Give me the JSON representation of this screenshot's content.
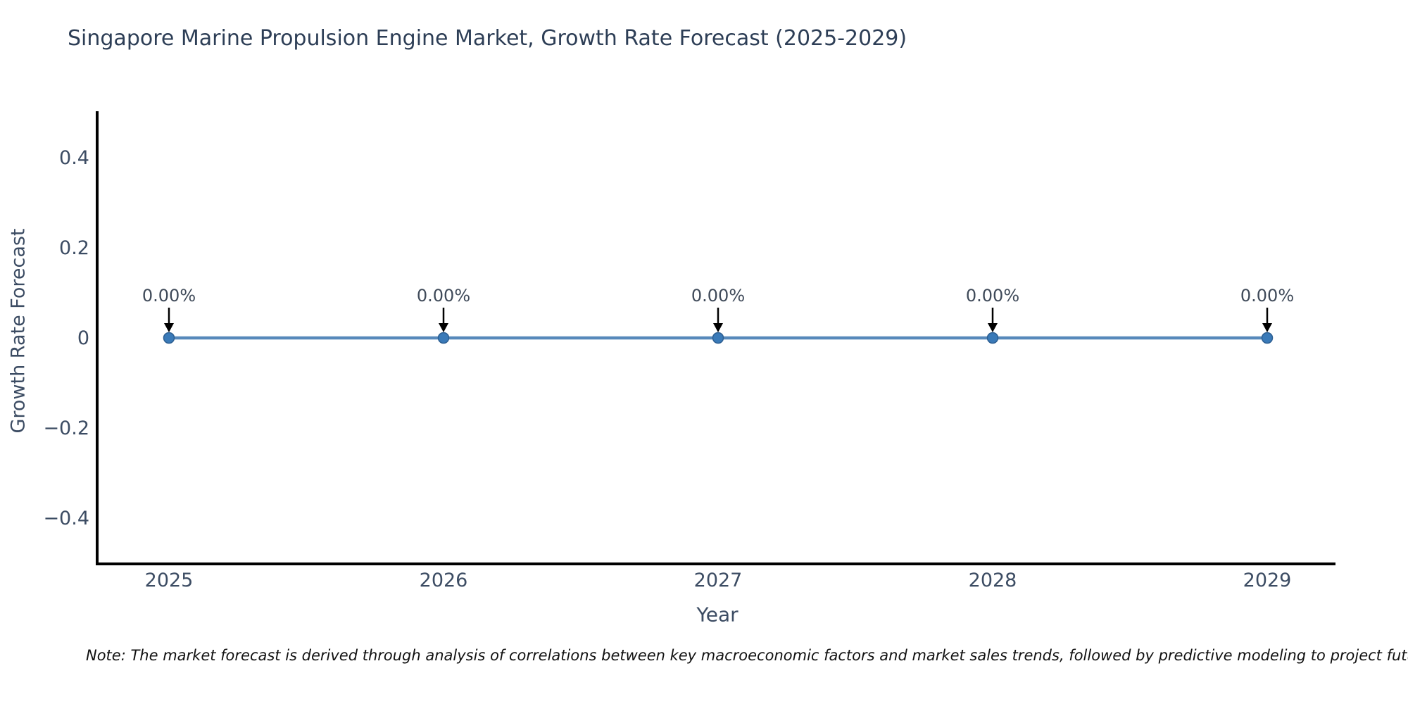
{
  "chart_data": {
    "type": "line",
    "title": "Singapore Marine Propulsion Engine Market, Growth Rate Forecast (2025-2029)",
    "xlabel": "Year",
    "ylabel": "Growth Rate Forecast",
    "categories": [
      "2025",
      "2026",
      "2027",
      "2028",
      "2029"
    ],
    "series": [
      {
        "name": "Growth Rate Forecast",
        "values": [
          0,
          0,
          0,
          0,
          0
        ]
      }
    ],
    "point_labels": [
      "0.00%",
      "0.00%",
      "0.00%",
      "0.00%",
      "0.00%"
    ],
    "yticks": [
      0.4,
      0.2,
      0,
      -0.2,
      -0.4
    ],
    "ytick_labels": [
      "0.4",
      "0.2",
      "0",
      "−0.2",
      "−0.4"
    ],
    "ylim": [
      -0.5,
      0.5
    ],
    "grid": false,
    "legend": "none",
    "line_color": "#5789bb",
    "marker_color": "#3a7ab8",
    "marker_edge_color": "#2d5f92",
    "axis_color": "#000000",
    "arrow_color": "#000000",
    "note": "Note: The market forecast is derived through analysis of correlations between key macroeconomic factors and market sales trends, followed by predictive modeling to project future sa"
  }
}
